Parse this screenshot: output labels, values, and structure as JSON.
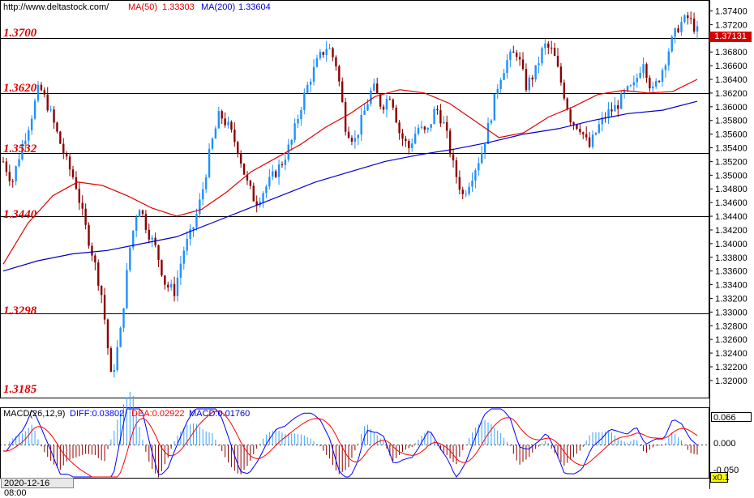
{
  "header": {
    "site": "http://www.deltastock.com/",
    "ma50_label": "MA(50)",
    "ma50_value": "1.33303",
    "ma200_label": "MA(200)",
    "ma200_value": "1.33604"
  },
  "levels": [
    "1.3700",
    "1.3620",
    "1.3532",
    "1.3440",
    "1.3298",
    "1.3185"
  ],
  "current_price": "1.37131",
  "macd": {
    "label": "MACD(26,12,9)",
    "diff": "DIFF:0.03802",
    "dea": "DEA:0.02922",
    "macd": "MACD:0.01760",
    "top_value": "0.066",
    "zero_label": "0.000",
    "bottom_value": "-0.050",
    "scale_badge": "x0.1"
  },
  "date_label": "2020-12-16 08:00",
  "colors": {
    "up": "#1e90ff",
    "down": "#8b0000",
    "ma50": "#e00000",
    "ma200": "#0000cc",
    "level_text": "#e00000",
    "macd_diff": "#0000ff",
    "macd_dea": "#ff0000",
    "price_box": "#d40000"
  },
  "chart_data": {
    "type": "candlestick",
    "y_axis_ticks": [
      "1.37400",
      "1.37200",
      "1.36800",
      "1.36600",
      "1.36400",
      "1.36200",
      "1.36000",
      "1.35800",
      "1.35600",
      "1.35400",
      "1.35200",
      "1.35000",
      "1.34800",
      "1.34600",
      "1.34400",
      "1.34200",
      "1.34000",
      "1.33800",
      "1.33600",
      "1.33400",
      "1.33200",
      "1.33000",
      "1.32800",
      "1.32600",
      "1.32400",
      "1.32200",
      "1.32000"
    ],
    "ylim": [
      1.3175,
      1.3756
    ],
    "horizontal_levels": [
      1.37,
      1.362,
      1.3532,
      1.344,
      1.3298
    ],
    "close_path": [
      1.352,
      1.349,
      1.354,
      1.358,
      1.363,
      1.36,
      1.356,
      1.352,
      1.349,
      1.343,
      1.338,
      1.332,
      1.32,
      1.327,
      1.339,
      1.346,
      1.342,
      1.339,
      1.334,
      1.333,
      1.339,
      1.342,
      1.347,
      1.354,
      1.359,
      1.357,
      1.354,
      1.349,
      1.346,
      1.348,
      1.35,
      1.352,
      1.355,
      1.36,
      1.364,
      1.367,
      1.369,
      1.366,
      1.357,
      1.355,
      1.359,
      1.363,
      1.36,
      1.362,
      1.356,
      1.354,
      1.357,
      1.356,
      1.36,
      1.357,
      1.351,
      1.347,
      1.35,
      1.353,
      1.358,
      1.364,
      1.367,
      1.368,
      1.363,
      1.365,
      1.369,
      1.368,
      1.363,
      1.358,
      1.357,
      1.354,
      1.357,
      1.359,
      1.36,
      1.362,
      1.363,
      1.367,
      1.362,
      1.365,
      1.369,
      1.372,
      1.373,
      1.371
    ],
    "ma50_path": [
      1.337,
      1.343,
      1.347,
      1.349,
      1.3485,
      1.347,
      1.3452,
      1.344,
      1.345,
      1.3475,
      1.3505,
      1.3525,
      1.3545,
      1.357,
      1.359,
      1.3615,
      1.3625,
      1.362,
      1.3605,
      1.358,
      1.3555,
      1.3562,
      1.3585,
      1.36,
      1.3618,
      1.3624,
      1.362,
      1.3622,
      1.364
    ],
    "ma200_path": [
      1.336,
      1.3375,
      1.3385,
      1.339,
      1.34,
      1.341,
      1.343,
      1.345,
      1.347,
      1.349,
      1.3505,
      1.352,
      1.353,
      1.3538,
      1.3548,
      1.356,
      1.3568,
      1.358,
      1.359,
      1.3595,
      1.3608
    ]
  }
}
